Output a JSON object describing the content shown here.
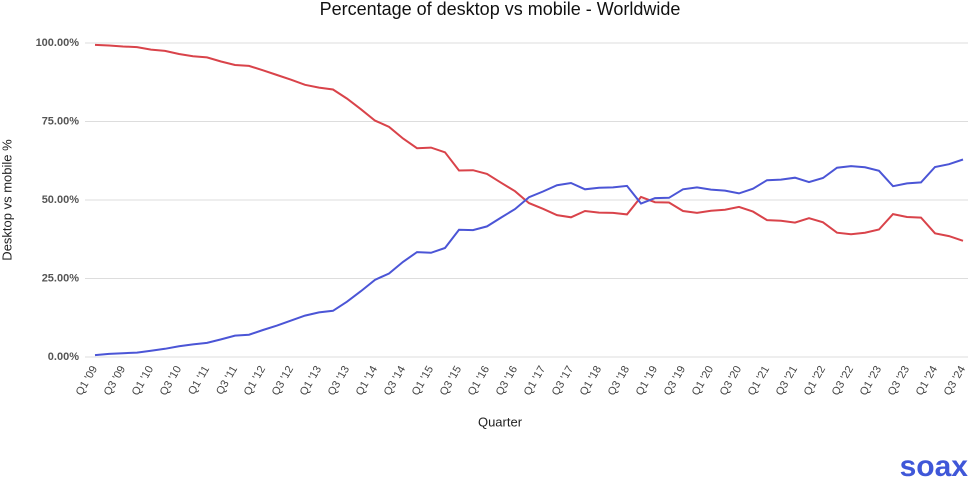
{
  "chart_data": {
    "type": "line",
    "title": "Percentage of desktop vs mobile - Worldwide",
    "x_label": "Quarter",
    "y_label": "Desktop vs mobile %",
    "categories": [
      "Q1 '09",
      null,
      "Q3 '09",
      null,
      "Q1 '10",
      null,
      "Q3 '10",
      null,
      "Q1 '11",
      null,
      "Q3 '11",
      null,
      "Q1 '12",
      null,
      "Q3 '12",
      null,
      "Q1 '13",
      null,
      "Q3 '13",
      null,
      "Q1 '14",
      null,
      "Q3 '14",
      null,
      "Q1 '15",
      null,
      "Q3 '15",
      null,
      "Q1 '16",
      null,
      "Q3 '16",
      null,
      "Q1 '17",
      null,
      "Q3 '17",
      null,
      "Q1 '18",
      null,
      "Q3 '18",
      null,
      "Q1 '19",
      null,
      "Q3 '19",
      null,
      "Q1 '20",
      null,
      "Q3 '20",
      null,
      "Q1 '21",
      null,
      "Q3 '21",
      null,
      "Q1 '22",
      null,
      "Q3 '22",
      null,
      "Q1 '23",
      null,
      "Q3 '23",
      null,
      "Q1 '24",
      null,
      "Q3 '24"
    ],
    "series": [
      {
        "color": "#d9434a",
        "values": [
          99.4,
          99.2,
          98.9,
          98.7,
          97.9,
          97.5,
          96.5,
          95.8,
          95.4,
          94.1,
          93.0,
          92.7,
          91.3,
          89.8,
          88.3,
          86.7,
          85.8,
          85.2,
          82.3,
          78.9,
          75.3,
          73.3,
          69.6,
          66.5,
          66.7,
          65.2,
          59.4,
          59.5,
          58.3,
          55.5,
          52.8,
          49.0,
          47.2,
          45.2,
          44.5,
          46.5,
          46.0,
          45.9,
          45.4,
          51.0,
          49.3,
          49.2,
          46.5,
          45.9,
          46.6,
          46.9,
          47.8,
          46.3,
          43.6,
          43.4,
          42.8,
          44.2,
          42.9,
          39.6,
          39.1,
          39.6,
          40.6,
          45.5,
          44.6,
          44.4,
          39.4,
          38.5,
          37.0
        ]
      },
      {
        "color": "#4b55d6",
        "values": [
          0.6,
          1.0,
          1.2,
          1.4,
          2.0,
          2.6,
          3.4,
          4.0,
          4.5,
          5.6,
          6.8,
          7.1,
          8.6,
          10.0,
          11.6,
          13.2,
          14.2,
          14.7,
          17.6,
          21.0,
          24.6,
          26.6,
          30.3,
          33.4,
          33.2,
          34.7,
          40.5,
          40.4,
          41.6,
          44.4,
          47.1,
          50.9,
          52.7,
          54.7,
          55.4,
          53.4,
          53.9,
          54.0,
          54.5,
          48.9,
          50.6,
          50.7,
          53.4,
          54.0,
          53.3,
          53.0,
          52.1,
          53.6,
          56.3,
          56.5,
          57.1,
          55.7,
          57.0,
          60.3,
          60.8,
          60.4,
          59.3,
          54.4,
          55.3,
          55.6,
          60.5,
          61.4,
          62.9
        ]
      }
    ],
    "ylim": [
      0,
      100
    ],
    "yticks": [
      {
        "value": 0,
        "label": "0.00%"
      },
      {
        "value": 25,
        "label": "25.00%"
      },
      {
        "value": 50,
        "label": "50.00%"
      },
      {
        "value": 75,
        "label": "75.00%"
      },
      {
        "value": 100,
        "label": "100.00%"
      }
    ],
    "grid": true
  },
  "brand": "soax"
}
